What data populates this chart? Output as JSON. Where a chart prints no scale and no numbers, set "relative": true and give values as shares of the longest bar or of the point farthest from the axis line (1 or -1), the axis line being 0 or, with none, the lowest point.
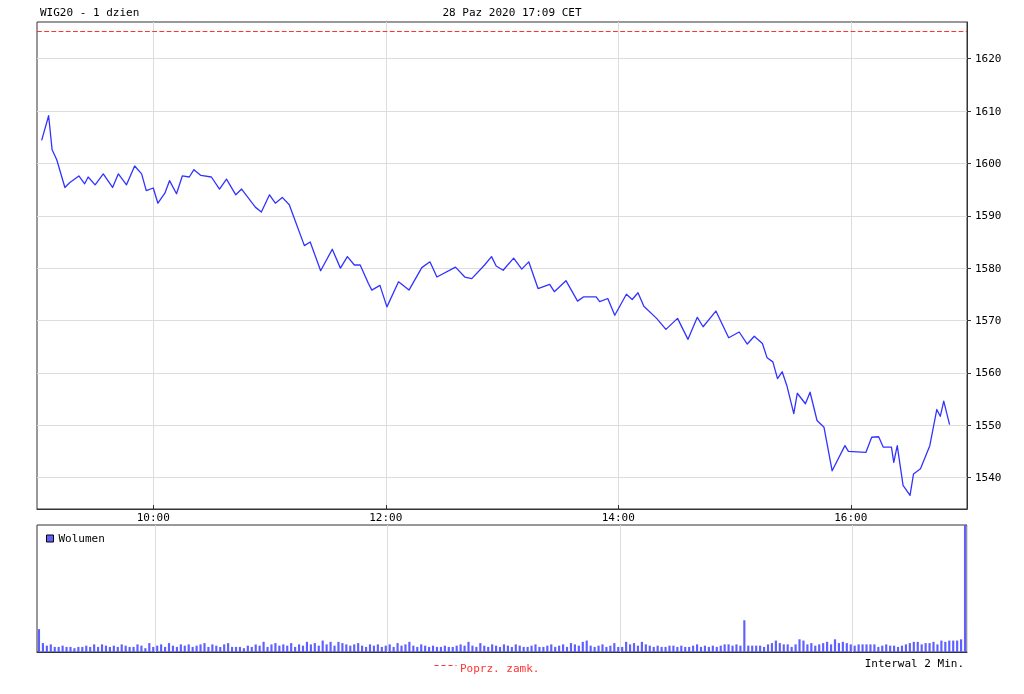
{
  "chart_data": [
    {
      "type": "line",
      "title": "WIG20 - 1 dzien",
      "subtitle": "28 Paz 2020 17:09 CET",
      "annotations": [
        "Interwal 2 Min."
      ],
      "xlim": [
        9,
        17
      ],
      "xticks": [
        {
          "value": 10,
          "label": "10:00"
        },
        {
          "value": 12,
          "label": "12:00"
        },
        {
          "value": 14,
          "label": "14:00"
        },
        {
          "value": 16,
          "label": "16:00"
        }
      ],
      "ylim": [
        1534,
        1627
      ],
      "yticks": [
        1540,
        1550,
        1560,
        1570,
        1580,
        1590,
        1600,
        1610,
        1620
      ],
      "grid": true,
      "ref_lines": [
        {
          "axis": "y",
          "value": 1625.2,
          "label": "Poprz. zamk.",
          "color": "#ff3333",
          "line_style": "dashed"
        }
      ],
      "series": [
        {
          "color": "#3333ff",
          "x": [
            9.04,
            9.1,
            9.13,
            9.17,
            9.24,
            9.28,
            9.36,
            9.41,
            9.44,
            9.5,
            9.57,
            9.65,
            9.7,
            9.77,
            9.84,
            9.9,
            9.94,
            10.0,
            10.04,
            10.1,
            10.14,
            10.2,
            10.25,
            10.31,
            10.35,
            10.41,
            10.5,
            10.57,
            10.63,
            10.71,
            10.76,
            10.88,
            10.93,
            11.0,
            11.05,
            11.11,
            11.17,
            11.22,
            11.3,
            11.35,
            11.44,
            11.54,
            11.61,
            11.67,
            11.73,
            11.78,
            11.85,
            11.88,
            11.95,
            12.01,
            12.11,
            12.2,
            12.31,
            12.38,
            12.44,
            12.6,
            12.68,
            12.74,
            12.85,
            12.91,
            12.95,
            13.01,
            13.1,
            13.17,
            13.23,
            13.31,
            13.41,
            13.45,
            13.55,
            13.65,
            13.7,
            13.81,
            13.84,
            13.91,
            13.97,
            14.07,
            14.12,
            14.17,
            14.22,
            14.33,
            14.41,
            14.51,
            14.6,
            14.68,
            14.73,
            14.84,
            14.95,
            15.04,
            15.11,
            15.17,
            15.24,
            15.28,
            15.33,
            15.37,
            15.41,
            15.45,
            15.51,
            15.54,
            15.61,
            15.65,
            15.71,
            15.77,
            15.84,
            15.95,
            15.98,
            16.13,
            16.18,
            16.24,
            16.28,
            16.35,
            16.37,
            16.4,
            16.45,
            16.51,
            16.54,
            16.6,
            16.68,
            16.74,
            16.77,
            16.8,
            16.85
          ],
          "values": [
            1604.4,
            1609.1,
            1602.6,
            1600.7,
            1595.4,
            1596.3,
            1597.6,
            1596.1,
            1597.4,
            1595.9,
            1598.0,
            1595.4,
            1598.0,
            1595.9,
            1599.5,
            1598.0,
            1594.8,
            1595.3,
            1592.4,
            1594.3,
            1596.7,
            1594.2,
            1597.6,
            1597.4,
            1598.8,
            1597.7,
            1597.4,
            1595.1,
            1597.0,
            1594.0,
            1595.1,
            1591.6,
            1590.7,
            1594.0,
            1592.4,
            1593.5,
            1592.1,
            1589.1,
            1584.3,
            1585.0,
            1579.5,
            1583.6,
            1580.0,
            1582.2,
            1580.6,
            1580.6,
            1577.1,
            1575.8,
            1576.7,
            1572.6,
            1577.4,
            1575.8,
            1580.1,
            1581.2,
            1578.3,
            1580.2,
            1578.3,
            1578.0,
            1580.6,
            1582.2,
            1580.4,
            1579.6,
            1581.9,
            1579.8,
            1581.2,
            1576.1,
            1576.9,
            1575.5,
            1577.6,
            1573.7,
            1574.5,
            1574.5,
            1573.6,
            1574.2,
            1571.0,
            1575.0,
            1574.0,
            1575.3,
            1572.7,
            1570.4,
            1568.3,
            1570.4,
            1566.4,
            1570.6,
            1568.8,
            1571.8,
            1566.7,
            1567.8,
            1565.5,
            1567.0,
            1565.6,
            1562.9,
            1562.1,
            1558.9,
            1560.2,
            1557.6,
            1552.2,
            1556.1,
            1554.1,
            1556.3,
            1550.9,
            1549.6,
            1541.3,
            1546.1,
            1545.0,
            1544.8,
            1547.7,
            1547.8,
            1545.8,
            1545.8,
            1542.9,
            1546.1,
            1538.5,
            1536.6,
            1540.7,
            1541.7,
            1546.1,
            1553.0,
            1551.7,
            1554.6,
            1550.1
          ]
        }
      ]
    },
    {
      "type": "bar",
      "relative": true,
      "legend": "top left",
      "grid": "x",
      "categories": [
        null,
        null,
        null,
        null,
        null,
        null,
        null,
        null,
        null,
        null,
        null,
        null,
        null,
        null,
        null,
        null,
        null,
        null,
        null,
        null,
        null,
        null,
        null,
        null,
        null,
        null,
        null,
        null,
        null,
        null,
        null,
        null,
        null,
        null,
        null,
        null,
        null,
        null,
        null,
        null,
        null,
        null,
        null,
        null,
        null,
        null,
        null,
        null,
        null,
        null,
        null,
        null,
        null,
        null,
        null,
        null,
        null,
        null,
        null,
        null,
        null,
        null,
        null,
        null,
        null,
        null,
        null,
        null,
        null,
        null,
        null,
        null,
        null,
        null,
        null,
        null,
        null,
        null,
        null,
        null,
        null,
        null,
        null,
        null,
        null,
        null,
        null,
        null,
        null,
        null,
        null,
        null,
        null,
        null,
        null,
        null,
        null,
        null,
        null,
        null,
        null,
        null,
        null,
        null,
        null,
        null,
        null,
        null,
        null,
        null,
        null,
        null,
        null,
        null,
        null,
        null,
        null,
        null,
        null,
        null,
        null,
        null,
        null,
        null,
        null,
        null,
        null,
        null,
        null,
        null,
        null,
        null,
        null,
        null,
        null,
        null,
        null,
        null,
        null,
        null,
        null,
        null,
        null,
        null,
        null,
        null,
        null,
        null,
        null,
        null,
        null,
        null,
        null,
        null,
        null,
        null,
        null,
        null,
        null,
        null,
        null,
        null,
        null,
        null,
        null,
        null,
        null,
        null,
        null,
        null,
        null,
        null,
        null,
        null,
        null,
        null,
        null,
        null,
        null,
        null,
        null,
        null,
        null,
        null,
        null,
        null,
        null,
        null,
        null,
        null,
        null,
        null,
        null,
        null,
        null,
        null,
        null,
        null,
        null,
        null,
        null,
        null,
        null,
        null,
        null,
        null,
        null,
        null,
        null,
        null,
        null,
        null,
        null,
        null,
        null,
        null,
        null,
        null,
        null,
        null,
        null,
        null,
        null,
        null,
        null,
        null,
        null,
        null,
        null,
        null,
        null,
        null,
        null,
        null,
        null,
        null
      ],
      "series": [
        {
          "name": "Wolumen",
          "color": "#6060ff",
          "values": [
            0.18,
            0.07,
            0.05,
            0.06,
            0.04,
            0.04,
            0.05,
            0.04,
            0.04,
            0.03,
            0.04,
            0.04,
            0.05,
            0.04,
            0.06,
            0.04,
            0.06,
            0.05,
            0.04,
            0.05,
            0.04,
            0.06,
            0.05,
            0.04,
            0.04,
            0.06,
            0.05,
            0.03,
            0.07,
            0.04,
            0.05,
            0.06,
            0.04,
            0.07,
            0.05,
            0.04,
            0.06,
            0.05,
            0.06,
            0.04,
            0.05,
            0.06,
            0.07,
            0.04,
            0.06,
            0.05,
            0.04,
            0.06,
            0.07,
            0.04,
            0.04,
            0.04,
            0.03,
            0.05,
            0.04,
            0.06,
            0.05,
            0.08,
            0.04,
            0.06,
            0.07,
            0.05,
            0.06,
            0.05,
            0.07,
            0.04,
            0.06,
            0.05,
            0.08,
            0.06,
            0.07,
            0.05,
            0.09,
            0.06,
            0.08,
            0.05,
            0.08,
            0.07,
            0.06,
            0.05,
            0.06,
            0.07,
            0.05,
            0.04,
            0.06,
            0.05,
            0.06,
            0.04,
            0.05,
            0.06,
            0.04,
            0.07,
            0.05,
            0.06,
            0.08,
            0.05,
            0.04,
            0.06,
            0.05,
            0.04,
            0.05,
            0.04,
            0.04,
            0.05,
            0.04,
            0.04,
            0.05,
            0.06,
            0.05,
            0.08,
            0.05,
            0.04,
            0.07,
            0.05,
            0.04,
            0.06,
            0.05,
            0.04,
            0.06,
            0.05,
            0.04,
            0.06,
            0.05,
            0.04,
            0.04,
            0.05,
            0.06,
            0.04,
            0.04,
            0.05,
            0.06,
            0.04,
            0.05,
            0.06,
            0.04,
            0.07,
            0.06,
            0.05,
            0.08,
            0.09,
            0.05,
            0.04,
            0.05,
            0.06,
            0.04,
            0.05,
            0.07,
            0.04,
            0.04,
            0.08,
            0.06,
            0.07,
            0.05,
            0.08,
            0.06,
            0.05,
            0.04,
            0.05,
            0.04,
            0.04,
            0.05,
            0.05,
            0.04,
            0.05,
            0.04,
            0.04,
            0.05,
            0.06,
            0.04,
            0.05,
            0.04,
            0.05,
            0.04,
            0.05,
            0.06,
            0.06,
            0.05,
            0.06,
            0.05,
            0.25,
            0.05,
            0.05,
            0.05,
            0.05,
            0.04,
            0.06,
            0.07,
            0.09,
            0.07,
            0.06,
            0.06,
            0.04,
            0.06,
            0.1,
            0.09,
            0.06,
            0.07,
            0.05,
            0.06,
            0.07,
            0.08,
            0.06,
            0.1,
            0.07,
            0.08,
            0.07,
            0.06,
            0.05,
            0.06,
            0.06,
            0.06,
            0.06,
            0.06,
            0.04,
            0.05,
            0.06,
            0.05,
            0.05,
            0.04,
            0.05,
            0.06,
            0.07,
            0.08,
            0.08,
            0.06,
            0.07,
            0.07,
            0.08,
            0.06,
            0.09,
            0.08,
            0.09,
            0.09,
            0.09,
            0.1,
            1
          ]
        }
      ]
    }
  ]
}
